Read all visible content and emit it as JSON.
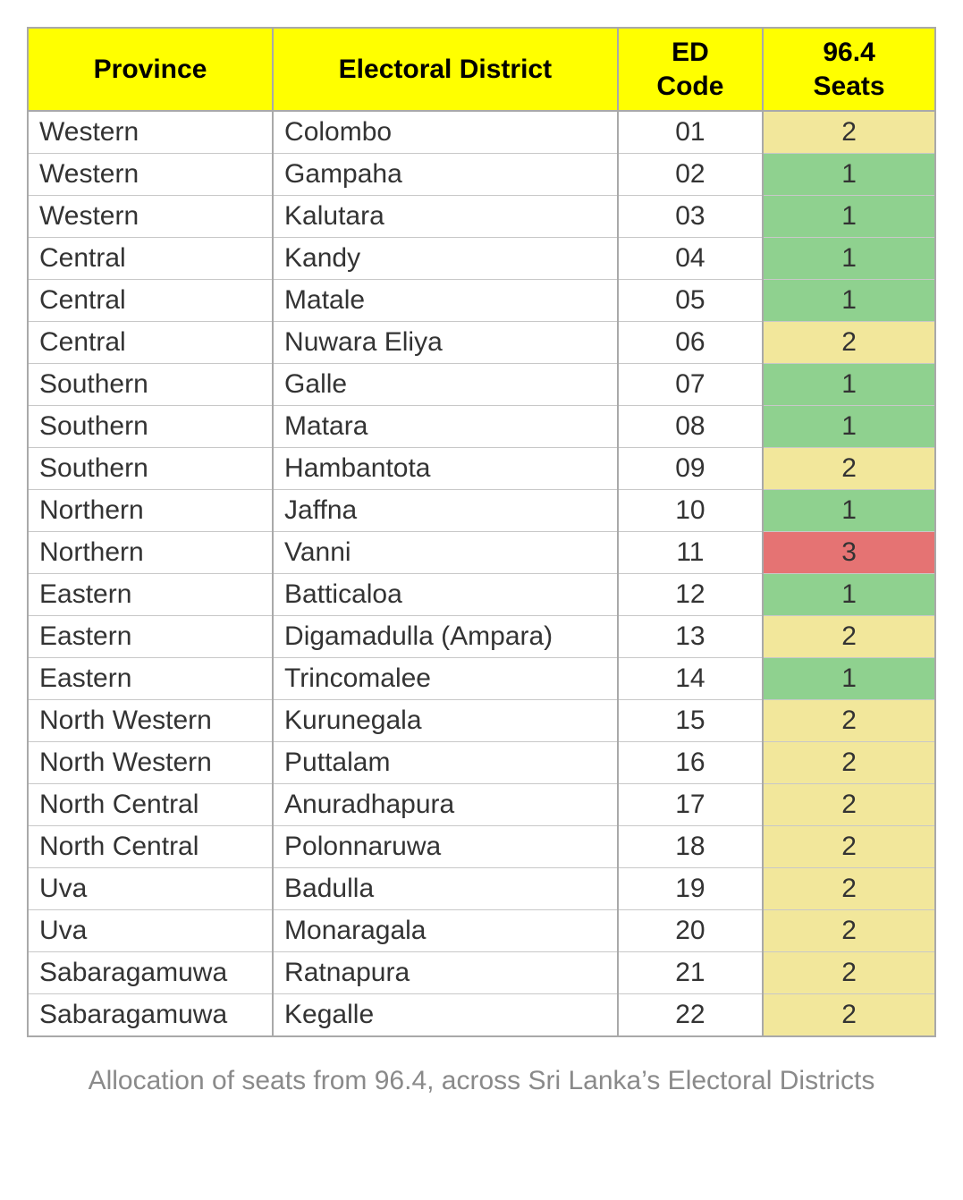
{
  "table": {
    "headers": {
      "province": "Province",
      "district": "Electoral District",
      "code_line1": "ED",
      "code_line2": "Code",
      "seats_line1": "96.4",
      "seats_line2": "Seats"
    },
    "colors": {
      "header_bg": "#ffff00",
      "seat_green": "#8fd18f",
      "seat_yellow": "#f2e79b",
      "seat_red": "#e57373",
      "border_outer": "#a9a9a9",
      "border_inner": "#c8c8c8",
      "text": "#333333",
      "caption_text": "#8a8a8a"
    },
    "rows": [
      {
        "province": "Western",
        "district": "Colombo",
        "code": "01",
        "seats": "2",
        "seat_color": "#f2e79b"
      },
      {
        "province": "Western",
        "district": "Gampaha",
        "code": "02",
        "seats": "1",
        "seat_color": "#8fd18f"
      },
      {
        "province": "Western",
        "district": "Kalutara",
        "code": "03",
        "seats": "1",
        "seat_color": "#8fd18f"
      },
      {
        "province": "Central",
        "district": "Kandy",
        "code": "04",
        "seats": "1",
        "seat_color": "#8fd18f"
      },
      {
        "province": "Central",
        "district": "Matale",
        "code": "05",
        "seats": "1",
        "seat_color": "#8fd18f"
      },
      {
        "province": "Central",
        "district": "Nuwara Eliya",
        "code": "06",
        "seats": "2",
        "seat_color": "#f2e79b"
      },
      {
        "province": "Southern",
        "district": "Galle",
        "code": "07",
        "seats": "1",
        "seat_color": "#8fd18f"
      },
      {
        "province": "Southern",
        "district": "Matara",
        "code": "08",
        "seats": "1",
        "seat_color": "#8fd18f"
      },
      {
        "province": "Southern",
        "district": "Hambantota",
        "code": "09",
        "seats": "2",
        "seat_color": "#f2e79b"
      },
      {
        "province": "Northern",
        "district": "Jaffna",
        "code": "10",
        "seats": "1",
        "seat_color": "#8fd18f"
      },
      {
        "province": "Northern",
        "district": "Vanni",
        "code": "11",
        "seats": "3",
        "seat_color": "#e57373"
      },
      {
        "province": "Eastern",
        "district": "Batticaloa",
        "code": "12",
        "seats": "1",
        "seat_color": "#8fd18f"
      },
      {
        "province": "Eastern",
        "district": "Digamadulla (Ampara)",
        "code": "13",
        "seats": "2",
        "seat_color": "#f2e79b"
      },
      {
        "province": "Eastern",
        "district": "Trincomalee",
        "code": "14",
        "seats": "1",
        "seat_color": "#8fd18f"
      },
      {
        "province": "North Western",
        "district": "Kurunegala",
        "code": "15",
        "seats": "2",
        "seat_color": "#f2e79b"
      },
      {
        "province": "North Western",
        "district": "Puttalam",
        "code": "16",
        "seats": "2",
        "seat_color": "#f2e79b"
      },
      {
        "province": "North Central",
        "district": "Anuradhapura",
        "code": "17",
        "seats": "2",
        "seat_color": "#f2e79b"
      },
      {
        "province": "North Central",
        "district": "Polonnaruwa",
        "code": "18",
        "seats": "2",
        "seat_color": "#f2e79b"
      },
      {
        "province": "Uva",
        "district": "Badulla",
        "code": "19",
        "seats": "2",
        "seat_color": "#f2e79b"
      },
      {
        "province": "Uva",
        "district": "Monaragala",
        "code": "20",
        "seats": "2",
        "seat_color": "#f2e79b"
      },
      {
        "province": "Sabaragamuwa",
        "district": "Ratnapura",
        "code": "21",
        "seats": "2",
        "seat_color": "#f2e79b"
      },
      {
        "province": "Sabaragamuwa",
        "district": "Kegalle",
        "code": "22",
        "seats": "2",
        "seat_color": "#f2e79b"
      }
    ]
  },
  "caption": "Allocation of seats from 96.4, across Sri Lanka’s Electoral Districts",
  "typography": {
    "cell_fontsize": 30,
    "header_fontsize": 30,
    "caption_fontsize": 30
  }
}
